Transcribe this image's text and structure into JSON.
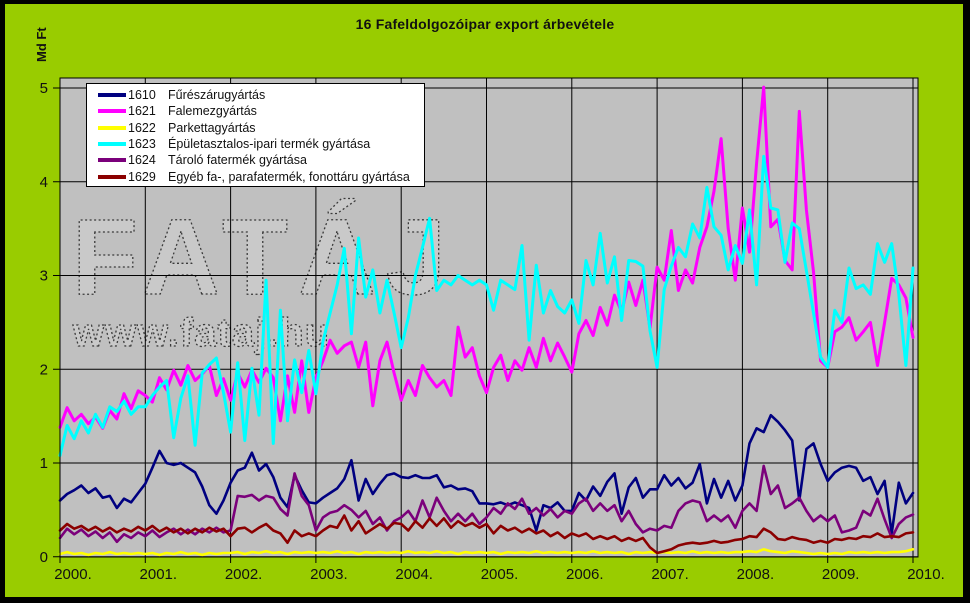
{
  "colors": {
    "chart_background": "#99CC00",
    "plot_background": "#C0C0C0",
    "gridline": "#000000",
    "legend_background": "#FFFFFF",
    "watermark_outline": "#3A3A3A",
    "watermark_fill": "#C9C9C9"
  },
  "watermark": {
    "line1": "FATÁJ",
    "line2": "www.fataj.hu"
  },
  "chart_data": {
    "type": "line",
    "title": "16 Fafeldolgozóipar export árbevétele",
    "ylabel": "Md Ft",
    "xlabel": "",
    "ylim": [
      0,
      5
    ],
    "x_start_year": 2000,
    "points_per_year": 12,
    "grid": "on",
    "legend_position": "top-left-inside",
    "y_tick_labels": [
      "0",
      "1",
      "2",
      "3",
      "4",
      "5"
    ],
    "x_tick_labels": [
      "2000.",
      "2001.",
      "2002.",
      "2003.",
      "2004.",
      "2005.",
      "2006.",
      "2007.",
      "2008.",
      "2009.",
      "2010."
    ],
    "series": [
      {
        "code": "1610",
        "name": "Fűrészárugyártás",
        "color": "#000080",
        "values": [
          0.6,
          0.67,
          0.71,
          0.76,
          0.68,
          0.73,
          0.63,
          0.65,
          0.52,
          0.62,
          0.58,
          0.68,
          0.78,
          0.95,
          1.13,
          1.0,
          0.98,
          1.0,
          0.95,
          0.9,
          0.75,
          0.55,
          0.46,
          0.6,
          0.79,
          0.92,
          0.95,
          1.11,
          0.92,
          0.99,
          0.85,
          0.63,
          0.53,
          0.87,
          0.71,
          0.58,
          0.57,
          0.63,
          0.68,
          0.73,
          0.83,
          1.03,
          0.6,
          0.83,
          0.67,
          0.78,
          0.87,
          0.89,
          0.85,
          0.84,
          0.87,
          0.84,
          0.84,
          0.87,
          0.74,
          0.76,
          0.72,
          0.73,
          0.7,
          0.57,
          0.57,
          0.56,
          0.58,
          0.55,
          0.58,
          0.55,
          0.52,
          0.28,
          0.55,
          0.52,
          0.58,
          0.49,
          0.49,
          0.68,
          0.6,
          0.75,
          0.65,
          0.8,
          0.89,
          0.46,
          0.74,
          0.84,
          0.63,
          0.72,
          0.72,
          0.87,
          0.76,
          0.84,
          0.73,
          0.79,
          0.99,
          0.57,
          0.83,
          0.63,
          0.81,
          0.6,
          0.76,
          1.21,
          1.37,
          1.33,
          1.51,
          1.44,
          1.35,
          1.24,
          0.6,
          1.15,
          1.21,
          0.99,
          0.81,
          0.9,
          0.95,
          0.97,
          0.95,
          0.81,
          0.85,
          0.67,
          0.81,
          0.25,
          0.79,
          0.57,
          0.68
        ]
      },
      {
        "code": "1621",
        "name": "Falemezgyártás",
        "color": "#FF00FF",
        "values": [
          1.38,
          1.59,
          1.45,
          1.52,
          1.42,
          1.49,
          1.37,
          1.56,
          1.47,
          1.74,
          1.58,
          1.77,
          1.72,
          1.65,
          1.91,
          1.78,
          1.99,
          1.83,
          2.04,
          1.88,
          1.95,
          2.04,
          1.72,
          1.9,
          1.67,
          1.96,
          1.81,
          1.99,
          1.86,
          2.01,
          1.91,
          1.45,
          1.93,
          1.54,
          2.09,
          1.54,
          1.91,
          2.09,
          2.31,
          2.17,
          2.25,
          2.29,
          2.02,
          2.29,
          1.61,
          2.09,
          2.29,
          1.96,
          1.67,
          1.88,
          1.72,
          2.04,
          1.91,
          1.81,
          1.88,
          1.72,
          2.45,
          2.13,
          2.23,
          1.93,
          1.75,
          2.02,
          2.15,
          1.88,
          2.09,
          1.99,
          2.23,
          2.02,
          2.33,
          2.09,
          2.28,
          2.13,
          1.97,
          2.38,
          2.52,
          2.36,
          2.66,
          2.47,
          2.79,
          2.61,
          2.93,
          2.68,
          2.95,
          2.44,
          3.09,
          2.95,
          3.48,
          2.84,
          3.06,
          2.92,
          3.3,
          3.52,
          3.9,
          4.46,
          3.5,
          2.95,
          3.72,
          3.25,
          4.2,
          5.01,
          3.52,
          3.6,
          3.16,
          3.06,
          4.75,
          3.7,
          3.04,
          2.09,
          2.02,
          2.4,
          2.45,
          2.55,
          2.31,
          2.4,
          2.5,
          2.04,
          2.5,
          2.97,
          2.9,
          2.76,
          2.34
        ]
      },
      {
        "code": "1622",
        "name": "Parkettagyártás",
        "color": "#FFFF00",
        "values": [
          0.03,
          0.05,
          0.03,
          0.04,
          0.02,
          0.04,
          0.03,
          0.05,
          0.03,
          0.04,
          0.03,
          0.04,
          0.03,
          0.04,
          0.02,
          0.04,
          0.03,
          0.05,
          0.03,
          0.04,
          0.02,
          0.04,
          0.03,
          0.04,
          0.04,
          0.05,
          0.03,
          0.05,
          0.04,
          0.06,
          0.04,
          0.05,
          0.03,
          0.05,
          0.04,
          0.05,
          0.04,
          0.05,
          0.04,
          0.06,
          0.04,
          0.05,
          0.03,
          0.05,
          0.04,
          0.05,
          0.04,
          0.05,
          0.04,
          0.06,
          0.04,
          0.05,
          0.04,
          0.06,
          0.04,
          0.05,
          0.03,
          0.05,
          0.04,
          0.05,
          0.04,
          0.05,
          0.03,
          0.05,
          0.04,
          0.05,
          0.04,
          0.06,
          0.04,
          0.05,
          0.04,
          0.05,
          0.04,
          0.05,
          0.04,
          0.06,
          0.04,
          0.05,
          0.04,
          0.05,
          0.03,
          0.05,
          0.04,
          0.05,
          0.04,
          0.05,
          0.04,
          0.05,
          0.04,
          0.06,
          0.04,
          0.05,
          0.04,
          0.05,
          0.04,
          0.05,
          0.05,
          0.06,
          0.05,
          0.08,
          0.06,
          0.05,
          0.04,
          0.06,
          0.05,
          0.04,
          0.03,
          0.04,
          0.03,
          0.04,
          0.03,
          0.05,
          0.04,
          0.05,
          0.04,
          0.05,
          0.04,
          0.05,
          0.05,
          0.06,
          0.08
        ]
      },
      {
        "code": "1623",
        "name": "Épületasztalos-ipari termék gyártása",
        "color": "#00FFFF",
        "values": [
          1.08,
          1.4,
          1.26,
          1.45,
          1.32,
          1.52,
          1.38,
          1.6,
          1.55,
          1.66,
          1.52,
          1.6,
          1.6,
          1.72,
          1.81,
          1.88,
          1.27,
          1.69,
          1.93,
          1.19,
          1.96,
          2.05,
          2.12,
          1.75,
          1.33,
          2.07,
          1.24,
          2.01,
          1.51,
          2.95,
          1.21,
          2.63,
          1.45,
          2.1,
          1.75,
          2.2,
          1.74,
          2.3,
          2.6,
          2.9,
          3.29,
          2.38,
          3.4,
          2.77,
          3.06,
          2.6,
          2.95,
          2.6,
          2.23,
          2.55,
          3.0,
          3.3,
          3.61,
          2.84,
          2.95,
          2.9,
          3.0,
          2.95,
          2.9,
          2.95,
          2.9,
          2.63,
          2.95,
          2.9,
          2.85,
          3.32,
          2.31,
          3.11,
          2.6,
          2.84,
          2.67,
          2.6,
          2.74,
          2.49,
          3.16,
          2.9,
          3.45,
          2.92,
          3.2,
          2.52,
          3.16,
          3.15,
          3.1,
          2.41,
          2.02,
          2.85,
          3.1,
          3.3,
          3.2,
          3.55,
          3.4,
          3.94,
          3.52,
          3.43,
          3.06,
          3.32,
          3.13,
          3.7,
          2.9,
          4.27,
          3.72,
          3.7,
          3.14,
          3.56,
          3.5,
          3.05,
          2.6,
          2.13,
          2.02,
          2.63,
          2.5,
          3.08,
          2.86,
          2.9,
          2.8,
          3.34,
          3.14,
          3.34,
          2.8,
          2.04,
          3.08
        ]
      },
      {
        "code": "1624",
        "name": "Tároló fatermék gyártása",
        "color": "#7B007B",
        "values": [
          0.2,
          0.3,
          0.24,
          0.29,
          0.22,
          0.27,
          0.2,
          0.26,
          0.16,
          0.24,
          0.2,
          0.26,
          0.22,
          0.28,
          0.21,
          0.26,
          0.3,
          0.24,
          0.29,
          0.24,
          0.3,
          0.26,
          0.31,
          0.26,
          0.28,
          0.65,
          0.64,
          0.66,
          0.6,
          0.65,
          0.63,
          0.51,
          0.44,
          0.89,
          0.65,
          0.55,
          0.28,
          0.42,
          0.47,
          0.49,
          0.55,
          0.5,
          0.42,
          0.49,
          0.35,
          0.42,
          0.28,
          0.38,
          0.42,
          0.49,
          0.38,
          0.6,
          0.42,
          0.63,
          0.49,
          0.38,
          0.46,
          0.38,
          0.46,
          0.35,
          0.42,
          0.52,
          0.46,
          0.57,
          0.51,
          0.62,
          0.46,
          0.52,
          0.44,
          0.51,
          0.42,
          0.49,
          0.46,
          0.57,
          0.62,
          0.49,
          0.57,
          0.49,
          0.55,
          0.38,
          0.49,
          0.35,
          0.26,
          0.3,
          0.28,
          0.33,
          0.31,
          0.49,
          0.57,
          0.6,
          0.58,
          0.38,
          0.44,
          0.38,
          0.44,
          0.31,
          0.49,
          0.57,
          0.49,
          0.97,
          0.67,
          0.76,
          0.52,
          0.57,
          0.63,
          0.49,
          0.38,
          0.44,
          0.38,
          0.44,
          0.26,
          0.28,
          0.31,
          0.49,
          0.44,
          0.62,
          0.4,
          0.2,
          0.35,
          0.42,
          0.45
        ]
      },
      {
        "code": "1629",
        "name": "Egyéb fa-, parafatermék, fonottáru gyártása",
        "color": "#8B0000",
        "values": [
          0.28,
          0.35,
          0.3,
          0.33,
          0.28,
          0.32,
          0.27,
          0.31,
          0.26,
          0.3,
          0.27,
          0.32,
          0.28,
          0.33,
          0.27,
          0.31,
          0.26,
          0.3,
          0.25,
          0.3,
          0.26,
          0.31,
          0.27,
          0.3,
          0.22,
          0.3,
          0.31,
          0.26,
          0.31,
          0.35,
          0.28,
          0.25,
          0.15,
          0.28,
          0.22,
          0.25,
          0.22,
          0.28,
          0.33,
          0.31,
          0.44,
          0.28,
          0.38,
          0.25,
          0.3,
          0.35,
          0.3,
          0.36,
          0.35,
          0.28,
          0.38,
          0.31,
          0.41,
          0.33,
          0.41,
          0.31,
          0.38,
          0.33,
          0.36,
          0.31,
          0.35,
          0.25,
          0.33,
          0.28,
          0.31,
          0.26,
          0.3,
          0.25,
          0.28,
          0.22,
          0.26,
          0.2,
          0.25,
          0.22,
          0.25,
          0.19,
          0.22,
          0.19,
          0.22,
          0.17,
          0.2,
          0.17,
          0.2,
          0.1,
          0.04,
          0.06,
          0.08,
          0.12,
          0.14,
          0.15,
          0.14,
          0.15,
          0.17,
          0.15,
          0.16,
          0.18,
          0.19,
          0.22,
          0.21,
          0.3,
          0.26,
          0.19,
          0.18,
          0.21,
          0.19,
          0.18,
          0.15,
          0.17,
          0.15,
          0.19,
          0.18,
          0.2,
          0.19,
          0.22,
          0.21,
          0.25,
          0.21,
          0.22,
          0.21,
          0.25,
          0.26
        ]
      }
    ]
  }
}
